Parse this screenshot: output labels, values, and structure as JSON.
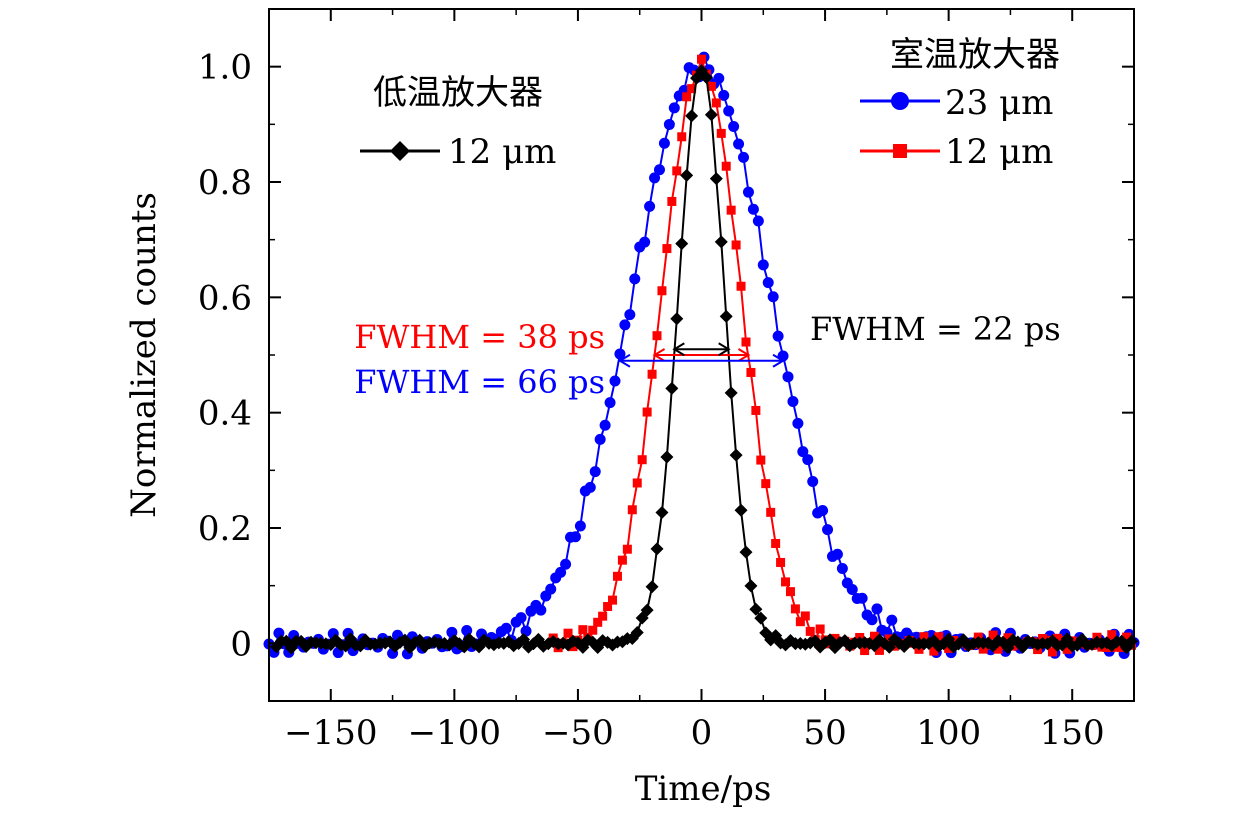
{
  "chart_data": {
    "type": "line",
    "title": "",
    "xlabel": "Time/ps",
    "ylabel": "Normalized counts",
    "xlim": [
      -175,
      175
    ],
    "ylim": [
      -0.1,
      1.1
    ],
    "x_ticks": [
      -150,
      -100,
      -50,
      0,
      50,
      100,
      150
    ],
    "x_tick_labels": [
      "−150",
      "−100",
      "−50",
      "0",
      "50",
      "100",
      "150"
    ],
    "y_ticks": [
      0,
      0.2,
      0.4,
      0.6,
      0.8,
      1.0
    ],
    "y_tick_labels": [
      "0",
      "0.2",
      "0.4",
      "0.6",
      "0.8",
      "1.0"
    ],
    "grid": false,
    "legend_groups": [
      {
        "title": "室温放大器",
        "placement": "top-right"
      },
      {
        "title": "低温放大器",
        "placement": "top-left"
      }
    ],
    "series": [
      {
        "name": "23 μm",
        "group": "室温放大器",
        "color": "#0000ff",
        "marker": "circle",
        "fwhm_ps": 66,
        "x_min": -175,
        "x_max": 175,
        "step": 2,
        "noise": 0.02
      },
      {
        "name": "12 μm",
        "group": "室温放大器",
        "color": "#ff0000",
        "marker": "square",
        "fwhm_ps": 38,
        "x_min": -60,
        "x_max": 175,
        "step": 2,
        "noise": 0.015
      },
      {
        "name": "12 μm",
        "group": "低温放大器",
        "color": "#000000",
        "marker": "diamond",
        "fwhm_ps": 22,
        "x_min": -172,
        "x_max": 175,
        "step": 2,
        "noise": 0.008
      }
    ],
    "annotations": [
      {
        "text": "FWHM = 38 ps",
        "color": "#ff0000",
        "fwhm": 38,
        "y": 0.5
      },
      {
        "text": "FWHM = 66 ps",
        "color": "#0000ff",
        "fwhm": 66,
        "y": 0.49
      },
      {
        "text": "FWHM = 22 ps",
        "color": "#000000",
        "fwhm": 22,
        "y": 0.51
      }
    ]
  }
}
